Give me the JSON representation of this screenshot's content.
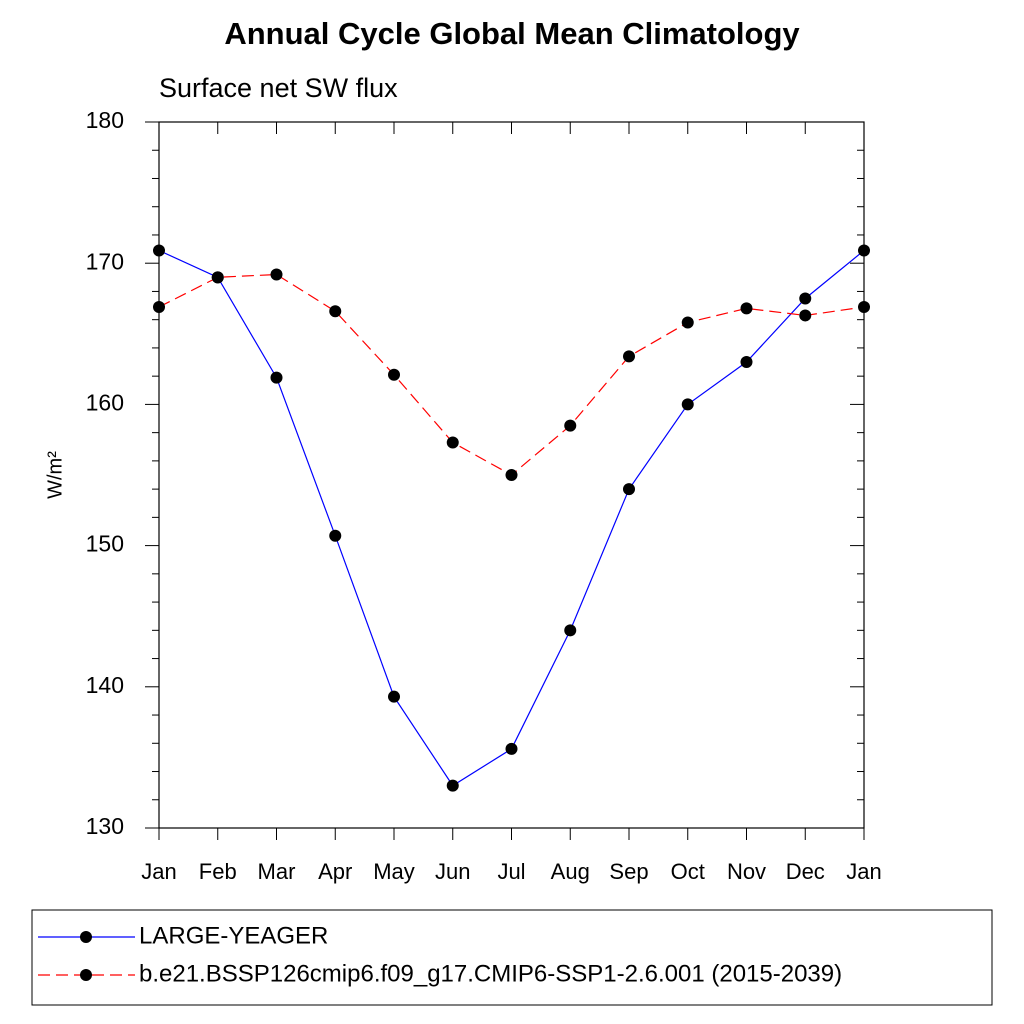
{
  "chart_data": {
    "type": "line",
    "title": "Annual Cycle Global Mean Climatology",
    "subtitle": "Surface net SW flux",
    "y_label": "W/m²",
    "categories": [
      "Jan",
      "Feb",
      "Mar",
      "Apr",
      "May",
      "Jun",
      "Jul",
      "Aug",
      "Sep",
      "Oct",
      "Nov",
      "Dec",
      "Jan"
    ],
    "ylim": [
      130,
      180
    ],
    "yticks": [
      130,
      140,
      150,
      160,
      170,
      180
    ],
    "yminorticks": [
      132,
      134,
      136,
      138,
      142,
      144,
      146,
      148,
      152,
      154,
      156,
      158,
      162,
      164,
      166,
      168,
      172,
      174,
      176,
      178
    ],
    "marker_color": "#000000",
    "series": [
      {
        "name": "LARGE-YEAGER",
        "color": "#0000ff",
        "dashed": false,
        "values": [
          170.9,
          169.0,
          161.9,
          150.7,
          139.3,
          133.0,
          135.6,
          144.0,
          154.0,
          160.0,
          163.0,
          167.5,
          170.9
        ]
      },
      {
        "name": "b.e21.BSSP126cmip6.f09_g17.CMIP6-SSP1-2.6.001 (2015-2039)",
        "color": "#ff0000",
        "dashed": true,
        "values": [
          166.9,
          169.0,
          169.2,
          166.6,
          162.1,
          157.3,
          155.0,
          158.5,
          163.4,
          165.8,
          166.8,
          166.3,
          166.9
        ]
      }
    ]
  }
}
